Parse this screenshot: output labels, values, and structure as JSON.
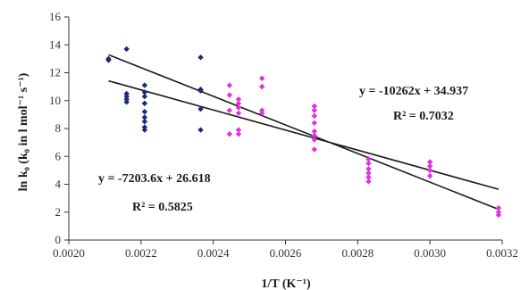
{
  "chart_data": {
    "type": "scatter",
    "title": "",
    "xlabel": "1/T (K⁻¹)",
    "ylabel": "ln k₀ (k₀ in l mol⁻¹ s⁻¹)",
    "xlim": [
      0.002,
      0.0032
    ],
    "ylim": [
      0,
      16
    ],
    "x_ticks": [
      "0.0020",
      "0.0022",
      "0.0024",
      "0.0026",
      "0.0028",
      "0.0030",
      "0.0032"
    ],
    "y_ticks": [
      "0",
      "2",
      "4",
      "6",
      "8",
      "10",
      "12",
      "14",
      "16"
    ],
    "grid": false,
    "legend": "none",
    "series": [
      {
        "color": "#1c2a78",
        "points": [
          [
            0.00211,
            12.9
          ],
          [
            0.00211,
            13.0
          ],
          [
            0.00216,
            13.7
          ],
          [
            0.00216,
            10.5
          ],
          [
            0.00216,
            10.3
          ],
          [
            0.00216,
            10.1
          ],
          [
            0.00216,
            9.9
          ],
          [
            0.00221,
            11.1
          ],
          [
            0.00221,
            10.6
          ],
          [
            0.00221,
            10.3
          ],
          [
            0.00221,
            9.8
          ],
          [
            0.00221,
            9.2
          ],
          [
            0.00221,
            8.8
          ],
          [
            0.00221,
            8.5
          ],
          [
            0.00221,
            8.1
          ],
          [
            0.00221,
            7.9
          ],
          [
            0.002365,
            13.1
          ],
          [
            0.002365,
            10.8
          ],
          [
            0.002365,
            10.7
          ],
          [
            0.002365,
            9.4
          ],
          [
            0.002365,
            7.9
          ]
        ]
      },
      {
        "color": "#dd33dd",
        "points": [
          [
            0.002445,
            11.1
          ],
          [
            0.002445,
            10.4
          ],
          [
            0.002445,
            9.3
          ],
          [
            0.002445,
            7.6
          ],
          [
            0.00247,
            10.1
          ],
          [
            0.00247,
            9.8
          ],
          [
            0.00247,
            9.5
          ],
          [
            0.00247,
            9.1
          ],
          [
            0.00247,
            7.9
          ],
          [
            0.00247,
            7.6
          ],
          [
            0.002535,
            11.6
          ],
          [
            0.002535,
            11.0
          ],
          [
            0.002535,
            9.3
          ],
          [
            0.002535,
            9.1
          ],
          [
            0.00268,
            9.6
          ],
          [
            0.00268,
            9.3
          ],
          [
            0.00268,
            8.9
          ],
          [
            0.00268,
            8.4
          ],
          [
            0.00268,
            7.8
          ],
          [
            0.00268,
            7.5
          ],
          [
            0.00268,
            7.2
          ],
          [
            0.00268,
            6.5
          ],
          [
            0.00283,
            5.8
          ],
          [
            0.00283,
            5.5
          ],
          [
            0.00283,
            5.1
          ],
          [
            0.00283,
            4.8
          ],
          [
            0.00283,
            4.5
          ],
          [
            0.00283,
            4.2
          ],
          [
            0.003,
            5.6
          ],
          [
            0.003,
            5.3
          ],
          [
            0.003,
            5.0
          ],
          [
            0.003,
            4.6
          ],
          [
            0.00319,
            2.3
          ],
          [
            0.00319,
            2.0
          ],
          [
            0.00319,
            1.8
          ]
        ]
      }
    ],
    "trendlines": [
      {
        "slope": -7203.6,
        "intercept": 26.618,
        "x_range": [
          0.00211,
          0.00319
        ]
      },
      {
        "slope": -10262,
        "intercept": 34.937,
        "x_range": [
          0.00211,
          0.00319
        ]
      }
    ],
    "annotations": [
      {
        "id": "eq-left",
        "text": "y = -7203.6x + 26.618"
      },
      {
        "id": "r2-left",
        "text": "R² = 0.5825"
      },
      {
        "id": "eq-right",
        "text": "y = -10262x + 34.937"
      },
      {
        "id": "r2-right",
        "text": "R² = 0.7032"
      }
    ]
  }
}
